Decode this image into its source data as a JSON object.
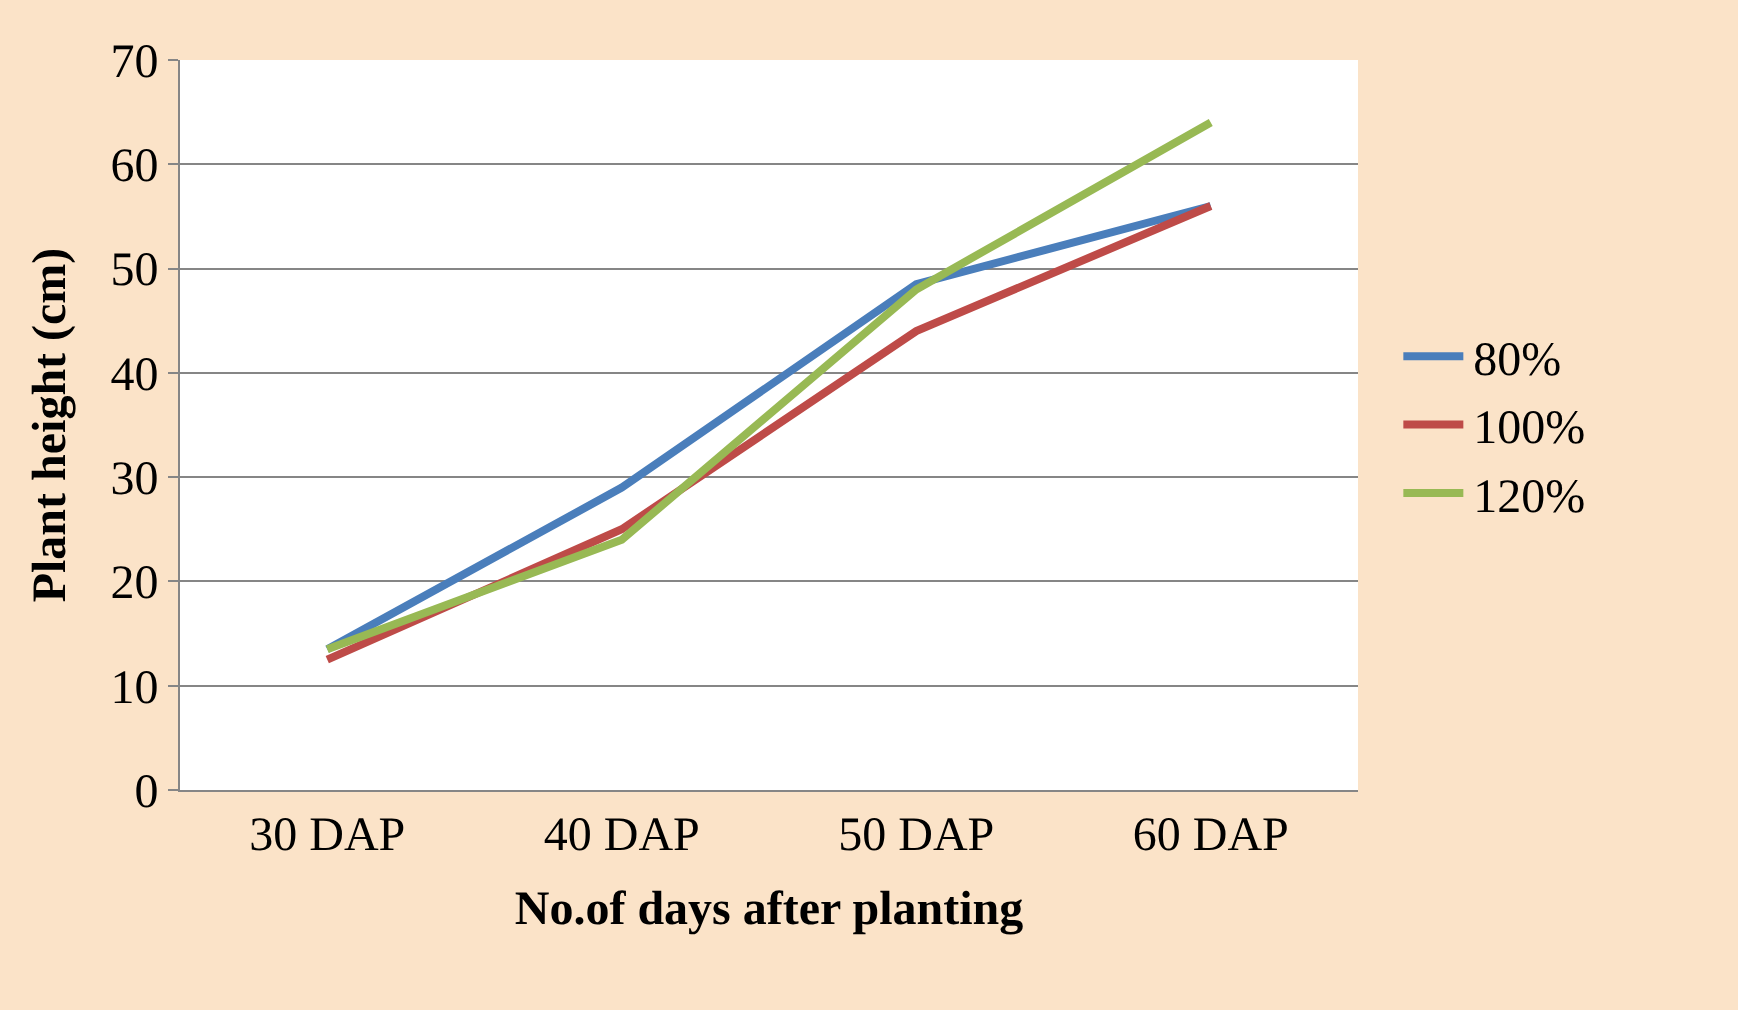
{
  "chart_data": {
    "type": "line",
    "xlabel": "No.of days after planting",
    "ylabel": "Plant height (cm)",
    "categories": [
      "30 DAP",
      "40 DAP",
      "50 DAP",
      "60 DAP"
    ],
    "series": [
      {
        "name": "80%",
        "color": "#4a7ebb",
        "values": [
          13.5,
          29,
          48.5,
          56
        ]
      },
      {
        "name": "100%",
        "color": "#be4b48",
        "values": [
          12.5,
          25,
          44,
          56
        ]
      },
      {
        "name": "120%",
        "color": "#98b954",
        "values": [
          13.5,
          24,
          48,
          64
        ]
      }
    ],
    "ylim": [
      0,
      70
    ],
    "yticks": [
      0,
      10,
      20,
      30,
      40,
      50,
      60,
      70
    ],
    "grid": "y",
    "legend": "right",
    "marker": "none",
    "line_style": "solid"
  }
}
